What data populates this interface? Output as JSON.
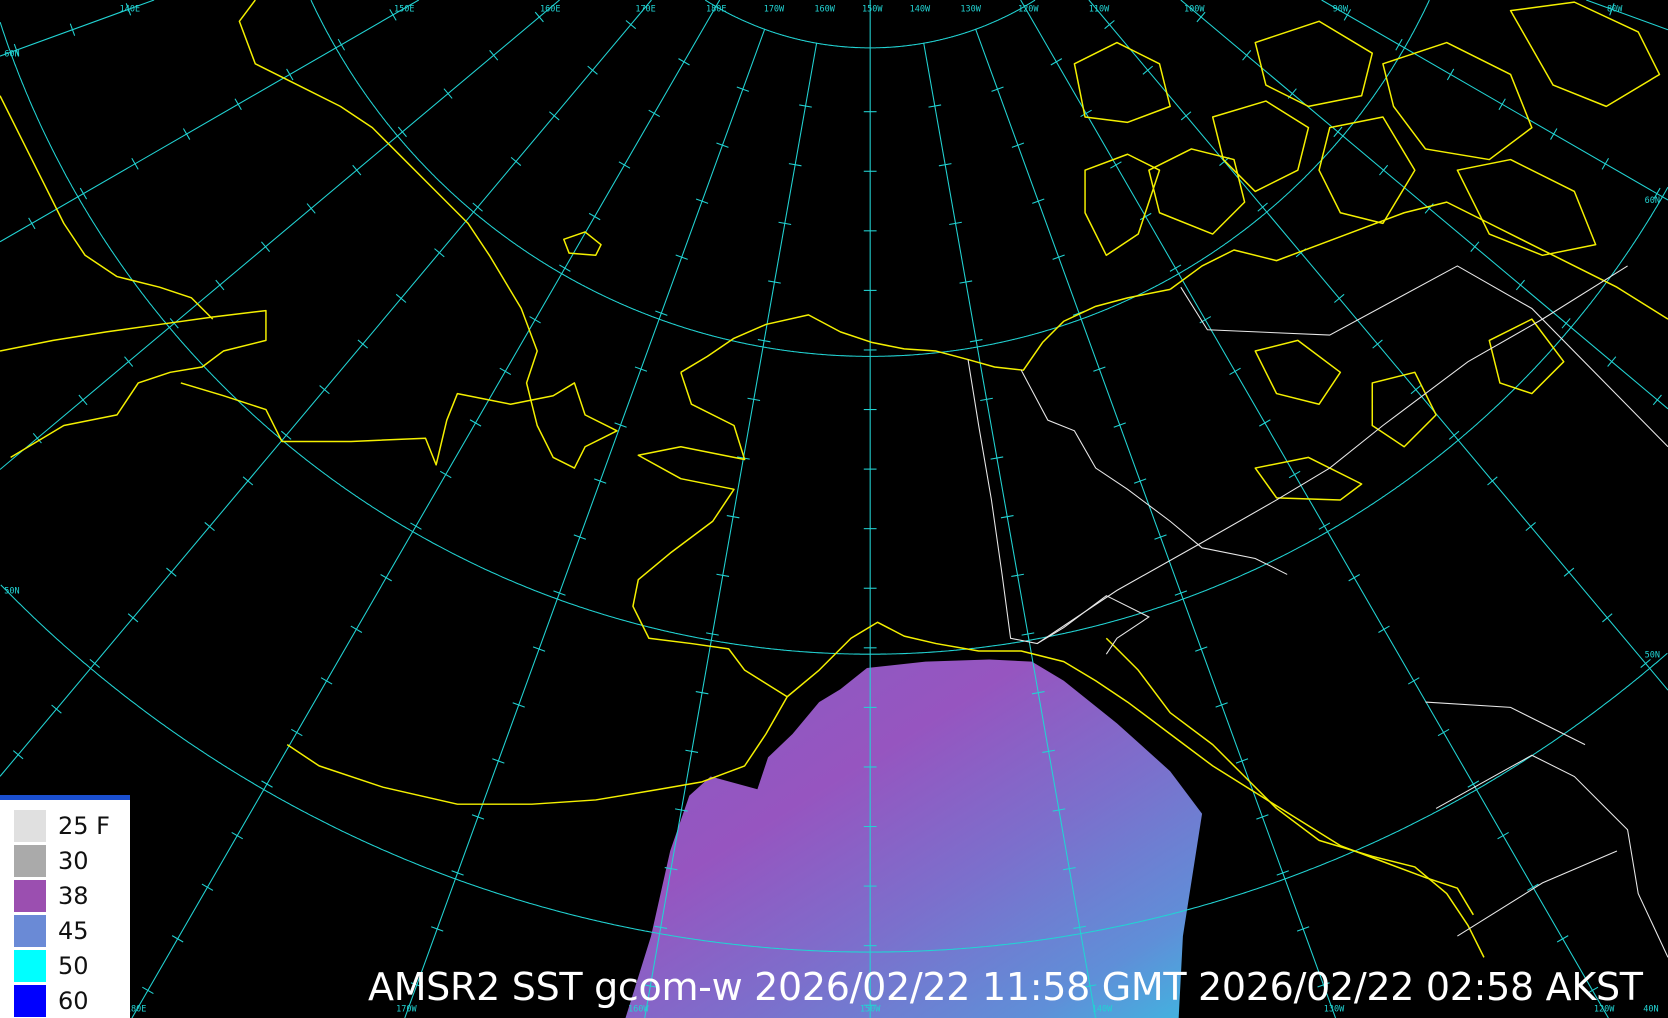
{
  "title": "AMSR2 SST gcom-w 2026/02/22 11:58 GMT 2026/02/22 02:58 AKST",
  "legend": {
    "items": [
      {
        "label": "25 F",
        "color": "#e0e0e0"
      },
      {
        "label": "30",
        "color": "#aaaaaa"
      },
      {
        "label": "38",
        "color": "#9b4fb0"
      },
      {
        "label": "45",
        "color": "#6a8ad6"
      },
      {
        "label": "50",
        "color": "#00ffff"
      },
      {
        "label": "60",
        "color": "#0000ff"
      }
    ]
  },
  "colors": {
    "grid": "#22d3d3",
    "coastline": "#f4f000",
    "borders": "#e8e8e8",
    "background": "#000000"
  },
  "top_lon_labels": [
    "140E",
    "150E",
    "160E",
    "170E",
    "180E",
    "170W",
    "160W",
    "150W",
    "140W",
    "130W",
    "120W",
    "110W",
    "100W",
    "90W",
    "80W"
  ],
  "bottom_lon_labels": [
    "180E",
    "170W",
    "160W",
    "150W",
    "140W",
    "130W",
    "120W",
    "40N"
  ],
  "lat_labels": {
    "left": [
      "60N",
      "50N"
    ],
    "right": [
      "60N",
      "50N"
    ]
  }
}
